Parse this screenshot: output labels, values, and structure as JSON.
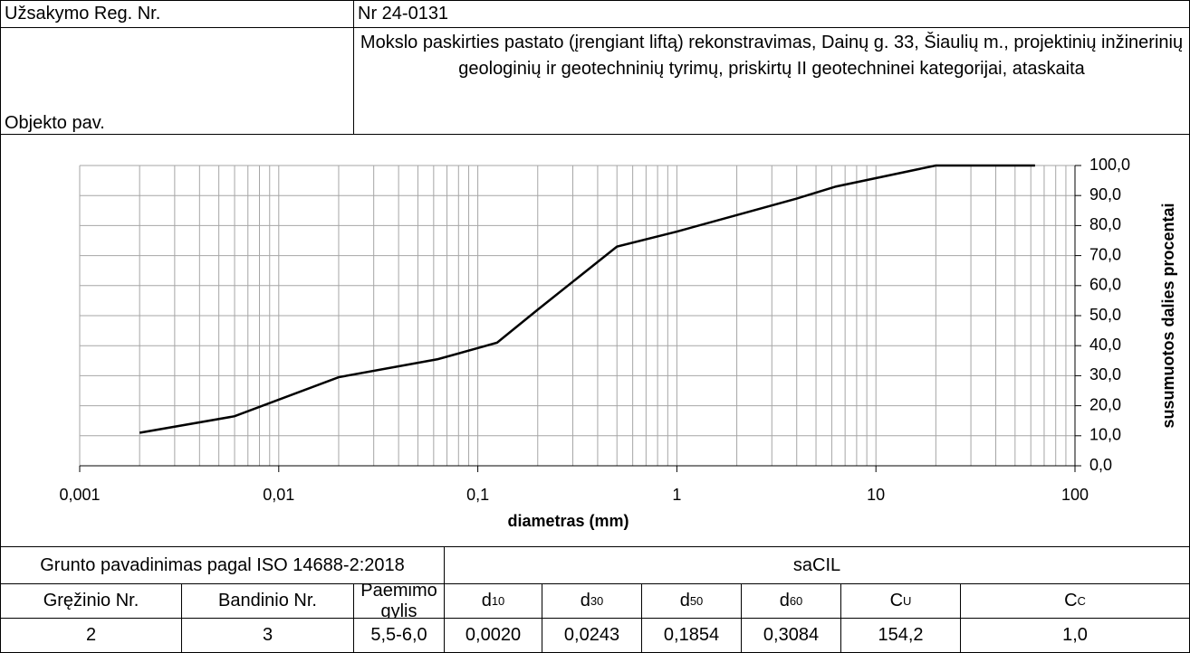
{
  "header": {
    "order_label": "Užsakymo Reg. Nr.",
    "order_value": "Nr 24-0131",
    "object_label": "Objekto pav.",
    "object_value": "Mokslo paskirties pastato (įrengiant liftą) rekonstravimas, Dainų g. 33, Šiaulių m., projektinių inžinerinių geologinių ir geotechninių tyrimų, priskirtų II geotechninei kategorijai, ataskaita"
  },
  "chart_data": {
    "type": "line",
    "x_label": "diametras (mm)",
    "y_label": "susumuotos dalies procentai",
    "x": [
      0.002,
      0.006,
      0.02,
      0.063,
      0.125,
      0.2,
      0.5,
      1,
      2,
      4,
      6.3,
      20,
      63
    ],
    "series": [
      {
        "name": "saCIL",
        "color": "#000000",
        "values": [
          11,
          16.5,
          29.5,
          35.5,
          41,
          52,
          73,
          78,
          83.5,
          89,
          93,
          100,
          100
        ]
      }
    ],
    "xlim": [
      0.001,
      100
    ],
    "xticks": [
      {
        "value": 0.001,
        "label": "0,001"
      },
      {
        "value": 0.01,
        "label": "0,01"
      },
      {
        "value": 0.1,
        "label": "0,1"
      },
      1,
      10,
      100
    ],
    "ylim": [
      0,
      100
    ],
    "yticks": [
      {
        "value": 0,
        "label": "0,0"
      },
      {
        "value": 10,
        "label": "10,0"
      },
      {
        "value": 20,
        "label": "20,0"
      },
      {
        "value": 30,
        "label": "30,0"
      },
      {
        "value": 40,
        "label": "40,0"
      },
      {
        "value": 50,
        "label": "50,0"
      },
      {
        "value": 60,
        "label": "60,0"
      },
      {
        "value": 70,
        "label": "70,0"
      },
      {
        "value": 80,
        "label": "80,0"
      },
      {
        "value": 90,
        "label": "90,0"
      },
      {
        "value": 100,
        "label": "100,0"
      }
    ],
    "log_x": true,
    "grid": true,
    "minor_grid": true,
    "y_axis_side": "right"
  },
  "table": {
    "name_label": "Grunto pavadinimas pagal ISO 14688-2:2018",
    "name_value": "saCIL",
    "headers": [
      "Gręžinio Nr.",
      "Bandinio Nr.",
      "Paėmimo gylis",
      {
        "main": "d",
        "sub": "10"
      },
      {
        "main": "d",
        "sub": "30"
      },
      {
        "main": "d",
        "sub": "50"
      },
      {
        "main": "d",
        "sub": "60"
      },
      {
        "main": "C",
        "sub": "U"
      },
      {
        "main": "C",
        "sub": "C"
      }
    ],
    "rows": [
      [
        "2",
        "3",
        "5,5-6,0",
        "0,0020",
        "0,0243",
        "0,1854",
        "0,3084",
        "154,2",
        "1,0"
      ]
    ]
  }
}
